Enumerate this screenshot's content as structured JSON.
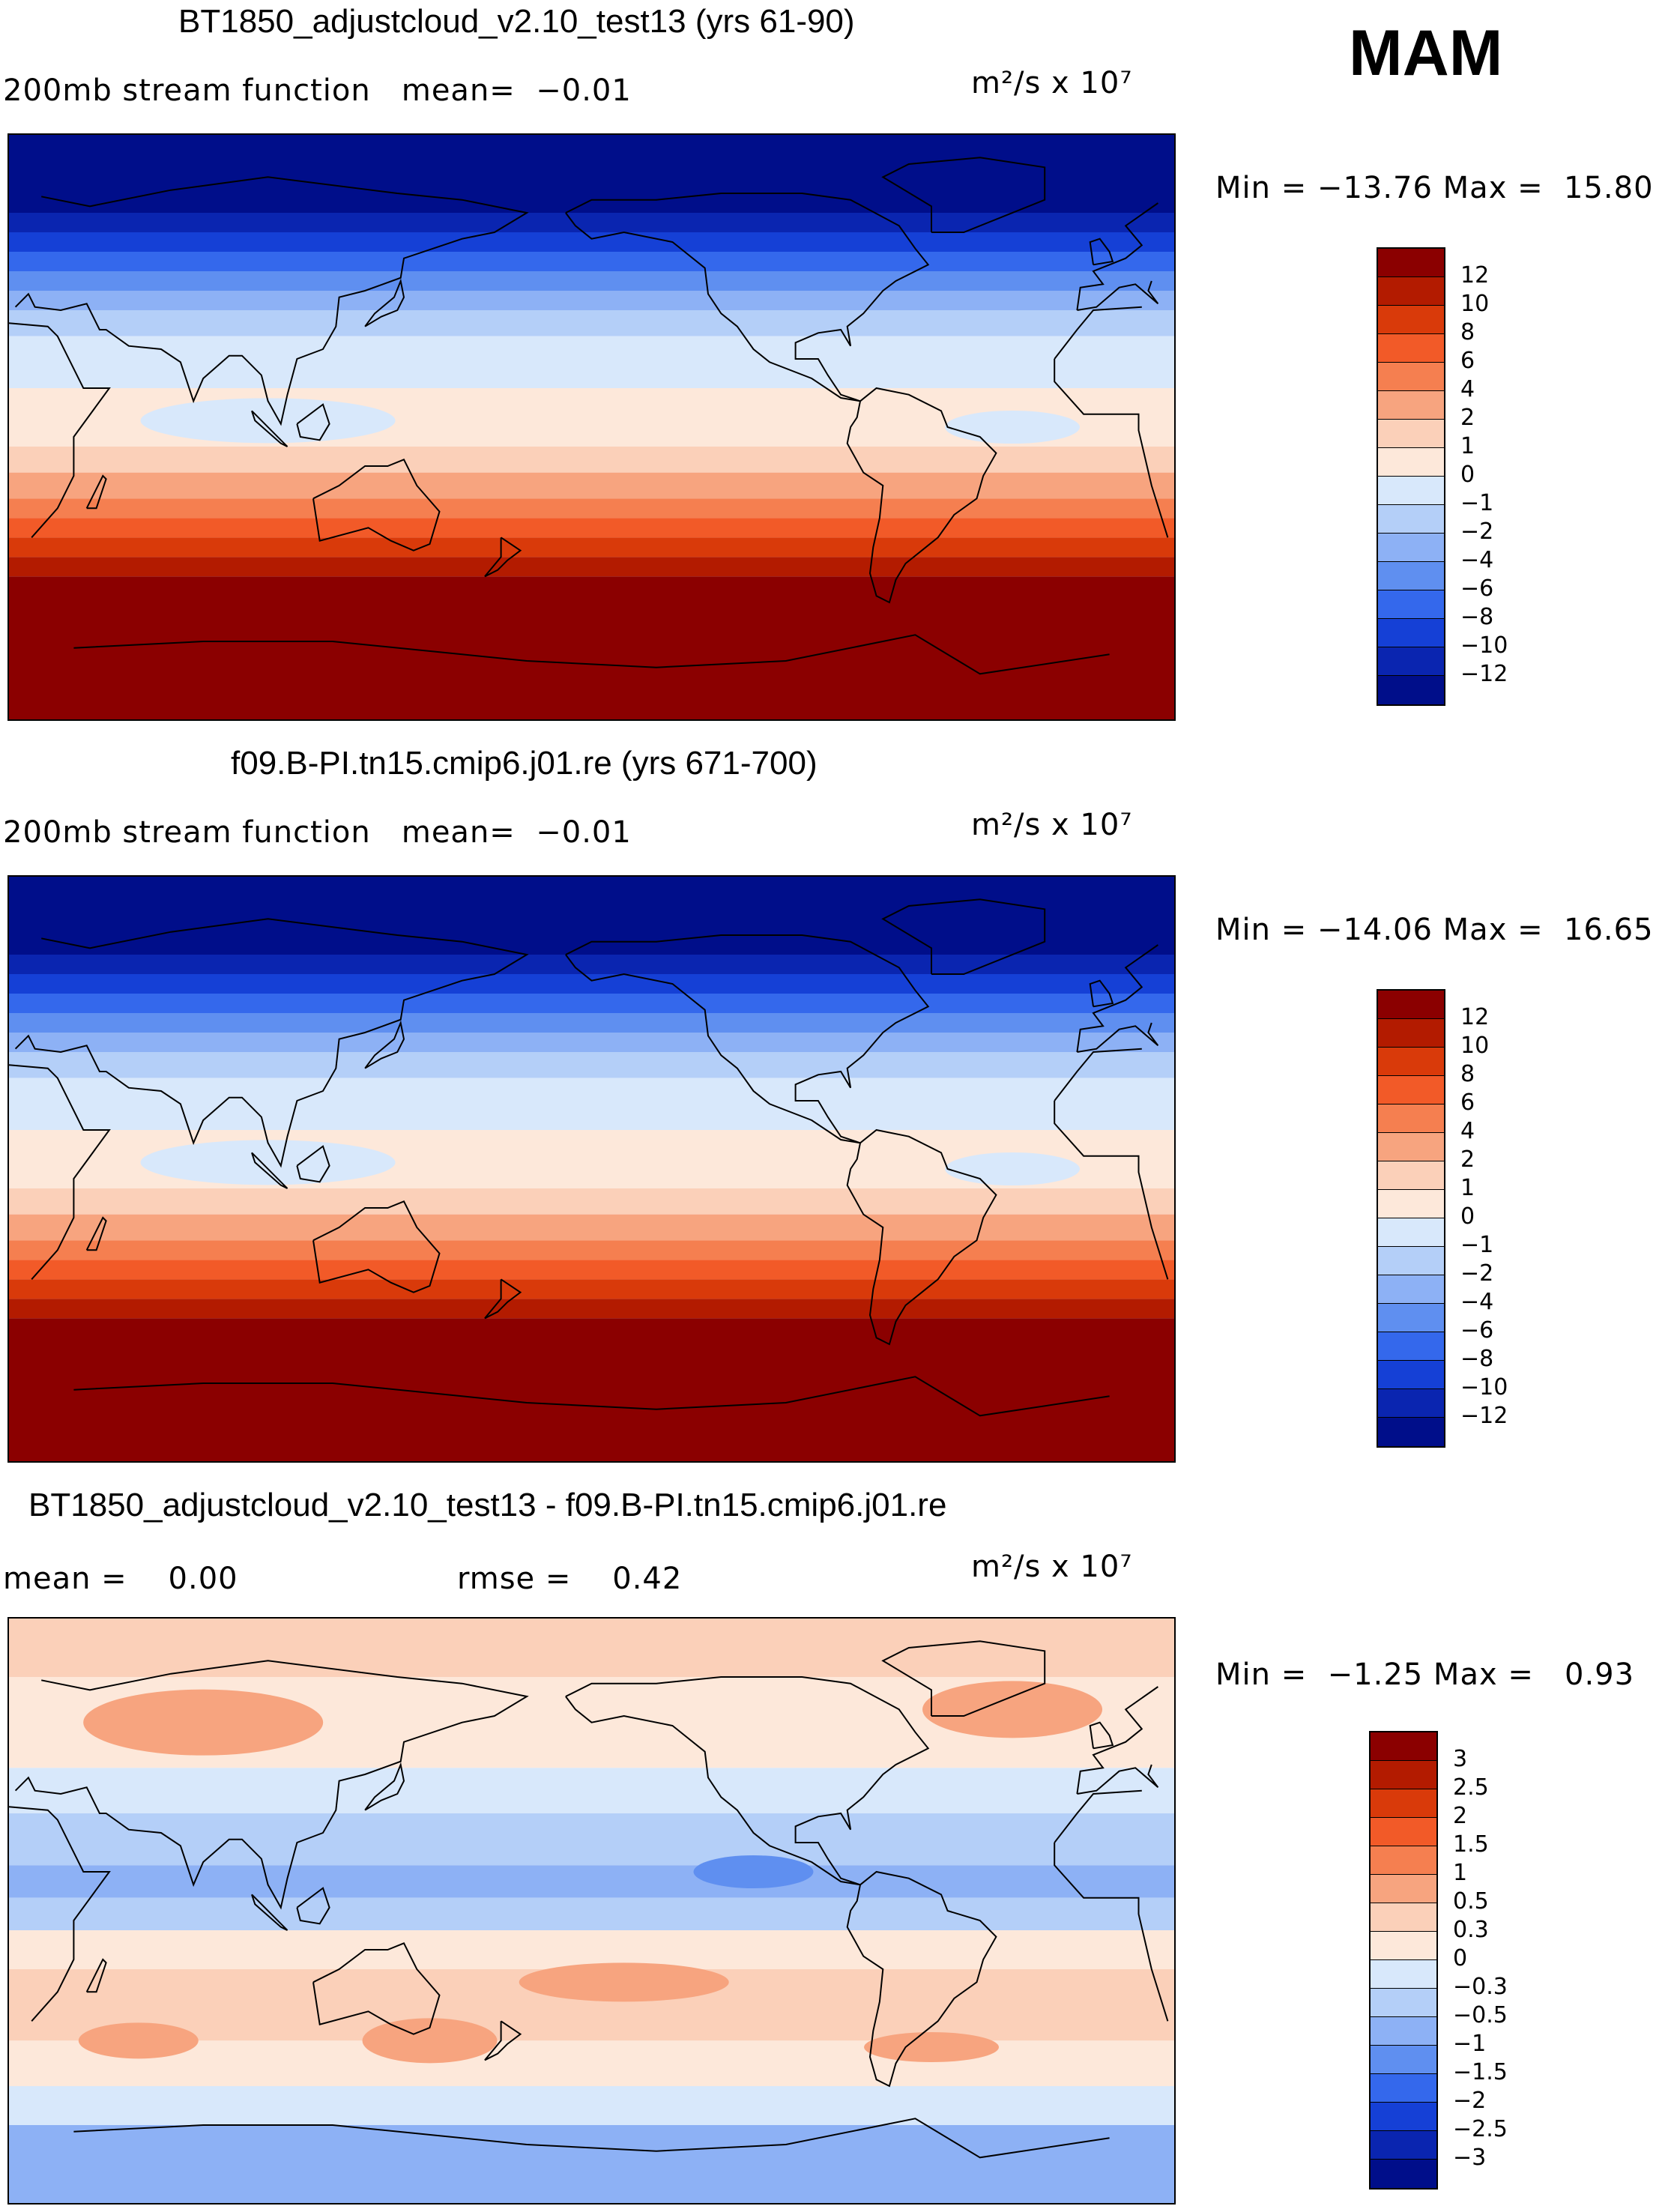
{
  "season": "MAM",
  "panels": [
    {
      "title": "BT1850_adjustcloud_v2.10_test13 (yrs 61-90)",
      "left_label": "200mb stream function   mean=  −0.01",
      "mid_label": "",
      "units": "m²/s x 10⁷",
      "stats": "Min = −13.76 Max =  15.80",
      "levels": [
        "12",
        "10",
        "8",
        "6",
        "4",
        "2",
        "1",
        "0",
        "−1",
        "−2",
        "−4",
        "−6",
        "−8",
        "−10",
        "−12"
      ]
    },
    {
      "title": "f09.B-PI.tn15.cmip6.j01.re (yrs 671-700)",
      "left_label": "200mb stream function   mean=  −0.01",
      "mid_label": "",
      "units": "m²/s x 10⁷",
      "stats": "Min = −14.06 Max =  16.65",
      "levels": [
        "12",
        "10",
        "8",
        "6",
        "4",
        "2",
        "1",
        "0",
        "−1",
        "−2",
        "−4",
        "−6",
        "−8",
        "−10",
        "−12"
      ]
    },
    {
      "title": "BT1850_adjustcloud_v2.10_test13 - f09.B-PI.tn15.cmip6.j01.re",
      "left_label": "mean =    0.00",
      "mid_label": "rmse =    0.42",
      "units": "m²/s x 10⁷",
      "stats": "Min =  −1.25 Max =   0.93",
      "levels": [
        "3",
        "2.5",
        "2",
        "1.5",
        "1",
        "0.5",
        "0.3",
        "0",
        "−0.3",
        "−0.5",
        "−1",
        "−1.5",
        "−2",
        "−2.5",
        "−3"
      ]
    }
  ],
  "colors": [
    "#8b0000",
    "#b31b00",
    "#d93a0a",
    "#f25a28",
    "#f57f50",
    "#f7a47f",
    "#fbd0b9",
    "#fde8da",
    "#d8e8fb",
    "#b4cff8",
    "#8db1f5",
    "#5f8ff0",
    "#3468ec",
    "#1540d6",
    "#0a25b0",
    "#000e8a"
  ]
}
